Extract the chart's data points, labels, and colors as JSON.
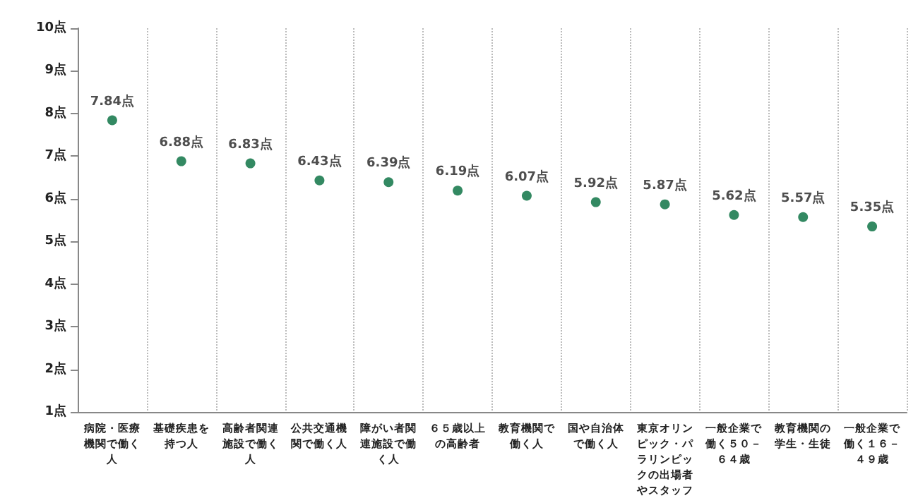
{
  "chart_data": {
    "type": "scatter",
    "categories": [
      "病院・医療機関で働く人",
      "基礎疾患を持つ人",
      "高齢者関連施設で働く人",
      "公共交通機関で働く人",
      "障がい者関連施設で働く人",
      "６５歳以上の高齢者",
      "教育機関で働く人",
      "国や自治体で働く人",
      "東京オリンピック・パラリンピックの出場者やスタッフ",
      "一般企業で働く５０－６４歳",
      "教育機関の学生・生徒",
      "一般企業で働く１６－４９歳"
    ],
    "series": [
      {
        "color": "#006c3b",
        "values": [
          7.84,
          6.88,
          6.83,
          6.43,
          6.39,
          6.19,
          6.07,
          5.92,
          5.87,
          5.62,
          5.57,
          5.35
        ],
        "value_labels": [
          "7.84点",
          "6.88点",
          "6.83点",
          "6.43点",
          "6.39点",
          "6.19点",
          "6.07点",
          "5.92点",
          "5.87点",
          "5.62点",
          "5.57点",
          "5.35点"
        ]
      }
    ],
    "ylim": [
      1,
      10
    ],
    "yticks": [
      {
        "value": 1,
        "label": "1点"
      },
      {
        "value": 2,
        "label": "2点"
      },
      {
        "value": 3,
        "label": "3点"
      },
      {
        "value": 4,
        "label": "4点"
      },
      {
        "value": 5,
        "label": "5点"
      },
      {
        "value": 6,
        "label": "6点"
      },
      {
        "value": 7,
        "label": "7点"
      },
      {
        "value": 8,
        "label": "8点"
      },
      {
        "value": 9,
        "label": "9点"
      },
      {
        "value": 10,
        "label": "10点"
      }
    ],
    "grid": "x",
    "marker": "circle"
  }
}
